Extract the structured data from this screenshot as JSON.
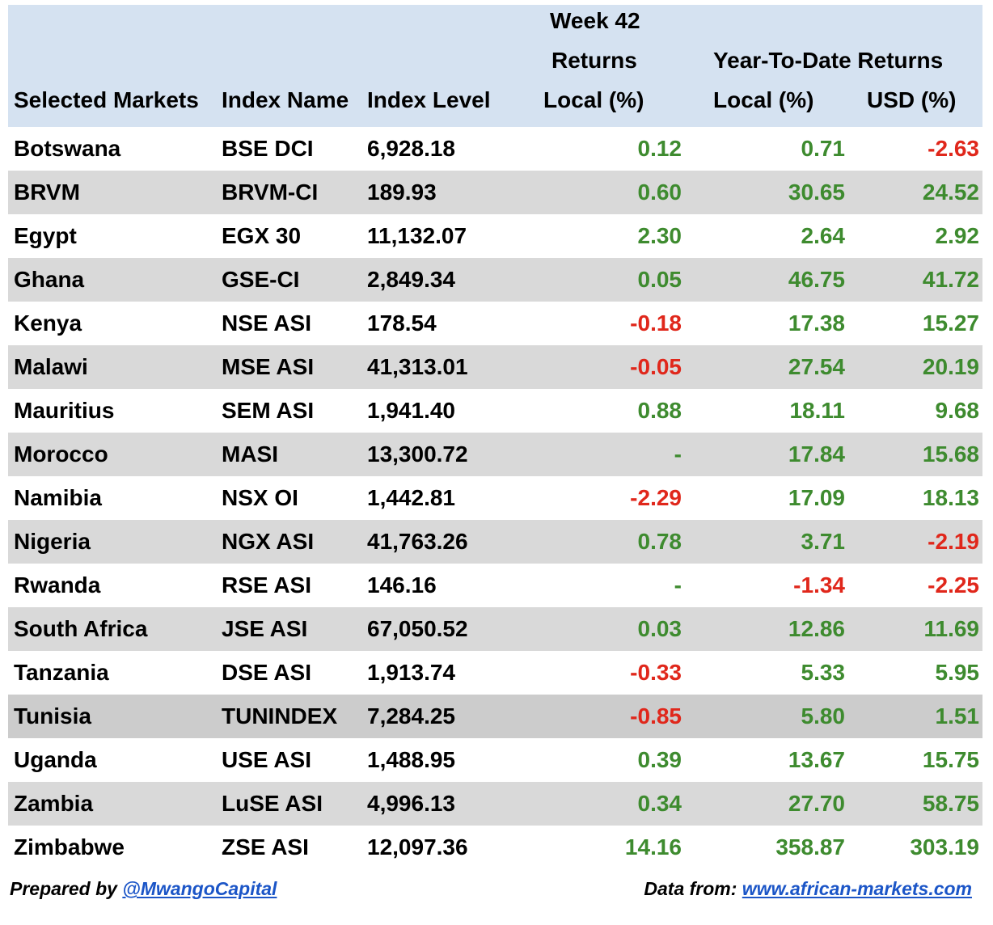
{
  "header": {
    "week_line1": "Week 42",
    "week_line2": "Returns",
    "ytd_title": "Year-To-Date Returns",
    "col_market": "Selected Markets",
    "col_index": "Index Name",
    "col_level": "Index Level",
    "col_week_local": "Local (%)",
    "col_ytd_local": "Local (%)",
    "col_ytd_usd": "USD (%)"
  },
  "rows": [
    {
      "market": "Botswana",
      "index": "BSE DCI",
      "level": "6,928.18",
      "week": "0.12",
      "ytd_local": "0.71",
      "ytd_usd": "-2.63"
    },
    {
      "market": "BRVM",
      "index": "BRVM-CI",
      "level": "189.93",
      "week": "0.60",
      "ytd_local": "30.65",
      "ytd_usd": "24.52"
    },
    {
      "market": "Egypt",
      "index": "EGX 30",
      "level": "11,132.07",
      "week": "2.30",
      "ytd_local": "2.64",
      "ytd_usd": "2.92"
    },
    {
      "market": "Ghana",
      "index": "GSE-CI",
      "level": "2,849.34",
      "week": "0.05",
      "ytd_local": "46.75",
      "ytd_usd": "41.72"
    },
    {
      "market": "Kenya",
      "index": "NSE ASI",
      "level": "178.54",
      "week": "-0.18",
      "ytd_local": "17.38",
      "ytd_usd": "15.27"
    },
    {
      "market": "Malawi",
      "index": "MSE ASI",
      "level": "41,313.01",
      "week": "-0.05",
      "ytd_local": "27.54",
      "ytd_usd": "20.19"
    },
    {
      "market": "Mauritius",
      "index": "SEM ASI",
      "level": "1,941.40",
      "week": "0.88",
      "ytd_local": "18.11",
      "ytd_usd": "9.68"
    },
    {
      "market": "Morocco",
      "index": "MASI",
      "level": "13,300.72",
      "week": "-",
      "ytd_local": "17.84",
      "ytd_usd": "15.68"
    },
    {
      "market": "Namibia",
      "index": "NSX OI",
      "level": "1,442.81",
      "week": "-2.29",
      "ytd_local": "17.09",
      "ytd_usd": "18.13"
    },
    {
      "market": "Nigeria",
      "index": "NGX ASI",
      "level": "41,763.26",
      "week": "0.78",
      "ytd_local": "3.71",
      "ytd_usd": "-2.19"
    },
    {
      "market": "Rwanda",
      "index": "RSE ASI",
      "level": "146.16",
      "week": "-",
      "ytd_local": "-1.34",
      "ytd_usd": "-2.25"
    },
    {
      "market": "South Africa",
      "index": "JSE ASI",
      "level": "67,050.52",
      "week": "0.03",
      "ytd_local": "12.86",
      "ytd_usd": "11.69"
    },
    {
      "market": "Tanzania",
      "index": "DSE ASI",
      "level": "1,913.74",
      "week": "-0.33",
      "ytd_local": "5.33",
      "ytd_usd": "5.95"
    },
    {
      "market": "Tunisia",
      "index": "TUNINDEX",
      "level": "7,284.25",
      "week": "-0.85",
      "ytd_local": "5.80",
      "ytd_usd": "1.51"
    },
    {
      "market": "Uganda",
      "index": "USE ASI",
      "level": "1,488.95",
      "week": "0.39",
      "ytd_local": "13.67",
      "ytd_usd": "15.75"
    },
    {
      "market": "Zambia",
      "index": "LuSE ASI",
      "level": "4,996.13",
      "week": "0.34",
      "ytd_local": "27.70",
      "ytd_usd": "58.75"
    },
    {
      "market": "Zimbabwe",
      "index": "ZSE ASI",
      "level": "12,097.36",
      "week": "14.16",
      "ytd_local": "358.87",
      "ytd_usd": "303.19"
    }
  ],
  "footer": {
    "prepared_label": "Prepared by ",
    "prepared_handle": "@MwangoCapital",
    "data_label": "Data from: ",
    "data_source": "www.african-markets.com"
  },
  "colors": {
    "header_bg": "#d5e2f1",
    "row_shade": "#d9d9d9",
    "row_shade_tunisia": "#cccccc",
    "positive": "#3e8b2f",
    "negative": "#e0271b",
    "link": "#1b55c7"
  }
}
